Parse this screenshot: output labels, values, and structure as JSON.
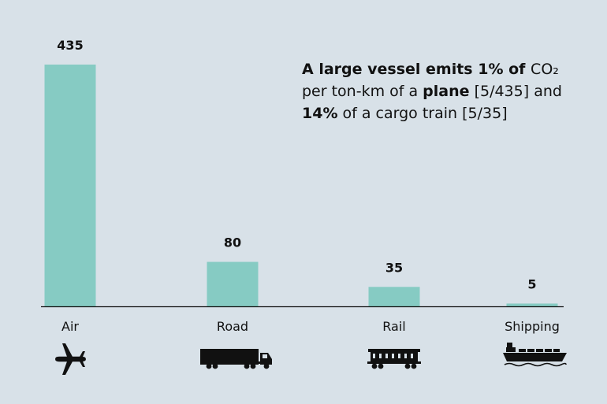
{
  "chart_data": {
    "type": "bar",
    "categories": [
      "Air",
      "Road",
      "Rail",
      "Shipping"
    ],
    "values": [
      435,
      80,
      35,
      5
    ],
    "value_labels": [
      "435",
      "80",
      "35",
      "5"
    ],
    "ylim": [
      0,
      435
    ],
    "grid": false,
    "bar_color": "#86cbc3",
    "icons": [
      "airplane-icon",
      "truck-icon",
      "rail-wagon-icon",
      "cargo-ship-icon"
    ]
  },
  "annotation": {
    "line1_bold": "A large vessel emits 1% of ",
    "line1_co": "CO",
    "line1_sub": "₂",
    "line2_a": "per ton-km of a ",
    "line2_bold": "plane",
    "line2_b": " [5/435] and",
    "line3_bold": "14%",
    "line3_b": " of a cargo train [5/35]"
  }
}
